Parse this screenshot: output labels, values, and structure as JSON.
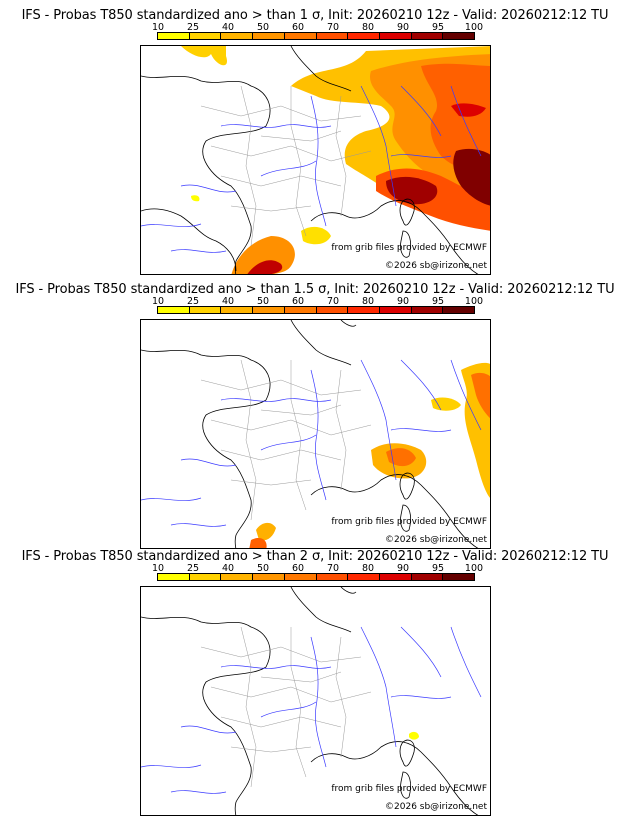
{
  "colorbar": {
    "labels": [
      "10",
      "25",
      "40",
      "50",
      "60",
      "70",
      "80",
      "90",
      "95",
      "100"
    ],
    "colors": [
      "#ffff00",
      "#ffd200",
      "#ffb400",
      "#ff9600",
      "#ff7800",
      "#ff5000",
      "#ff2800",
      "#dc0000",
      "#a00000",
      "#640000"
    ]
  },
  "panels": [
    {
      "title": "IFS - Probas T850  standardized ano > than 1 σ, Init: 20260210 12z - Valid: 20260212:12 TU",
      "credit_source": "from grib files provided by ECMWF",
      "credit_copyright": "©2026 sb@irizone.net"
    },
    {
      "title": "IFS - Probas T850  standardized ano > than 1.5 σ, Init: 20260210 12z - Valid: 20260212:12 TU",
      "credit_source": "from grib files provided by ECMWF",
      "credit_copyright": "©2026 sb@irizone.net"
    },
    {
      "title": "IFS - Probas T850  standardized ano > than 2 σ, Init: 20260210 12z - Valid: 20260212:12 TU",
      "credit_source": "from grib files provided by ECMWF",
      "credit_copyright": "©2026 sb@irizone.net"
    }
  ]
}
